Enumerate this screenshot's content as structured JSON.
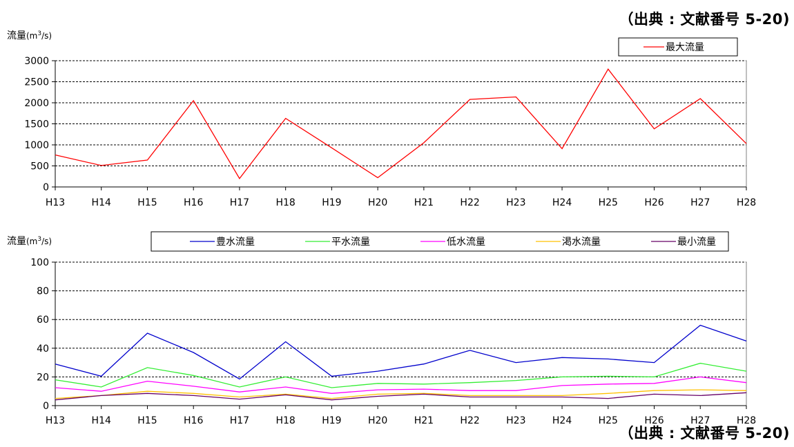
{
  "source_top": "（出典 : 文献番号 5-20)",
  "source_bottom": "（出典 : 文献番号 5-20)",
  "chart_data": [
    {
      "type": "line",
      "ylabel": "流量(m3/s)",
      "ylabel_main": "流量",
      "ylabel_unit": "(m",
      "ylabel_sup": "3",
      "ylabel_tail": "/s)",
      "categories": [
        "H13",
        "H14",
        "H15",
        "H16",
        "H17",
        "H18",
        "H19",
        "H20",
        "H21",
        "H22",
        "H23",
        "H24",
        "H25",
        "H26",
        "H27",
        "H28"
      ],
      "ylim": [
        0,
        3000
      ],
      "yticks": [
        0,
        500,
        1000,
        1500,
        2000,
        2500,
        3000
      ],
      "grid": true,
      "legend_position": "top-right",
      "series": [
        {
          "name": "最大流量",
          "color": "#ff0000",
          "values": [
            760,
            510,
            640,
            2050,
            200,
            1630,
            930,
            220,
            1050,
            2080,
            2140,
            910,
            2800,
            1380,
            2100,
            1030
          ]
        }
      ]
    },
    {
      "type": "line",
      "ylabel": "流量(m3/s)",
      "ylabel_main": "流量",
      "ylabel_unit": "(m",
      "ylabel_sup": "3",
      "ylabel_tail": "/s)",
      "categories": [
        "H13",
        "H14",
        "H15",
        "H16",
        "H17",
        "H18",
        "H19",
        "H20",
        "H21",
        "H22",
        "H23",
        "H24",
        "H25",
        "H26",
        "H27",
        "H28"
      ],
      "ylim": [
        0,
        100
      ],
      "yticks": [
        0,
        20,
        40,
        60,
        80,
        100
      ],
      "grid": true,
      "legend_position": "top",
      "series": [
        {
          "name": "豊水流量",
          "color": "#0000cc",
          "values": [
            29,
            20.5,
            50.5,
            37,
            18.5,
            44.5,
            20.5,
            24,
            29,
            38.5,
            30,
            33.5,
            32.5,
            30,
            56,
            45
          ]
        },
        {
          "name": "平水流量",
          "color": "#33ee33",
          "values": [
            18,
            13,
            26.5,
            21,
            13,
            20,
            12.5,
            15.5,
            15,
            16,
            17.5,
            20,
            20.5,
            20,
            29.5,
            24
          ]
        },
        {
          "name": "低水流量",
          "color": "#ff00ff",
          "values": [
            12.5,
            10,
            17,
            13.5,
            9.5,
            13,
            8.5,
            11,
            11.5,
            10.5,
            10.5,
            14,
            15,
            15.5,
            20,
            16
          ]
        },
        {
          "name": "渇水流量",
          "color": "#ffc000",
          "values": [
            5,
            7,
            10,
            8.5,
            6,
            8,
            5,
            8,
            8.5,
            7,
            7,
            7,
            8.5,
            10.5,
            11,
            10.5
          ]
        },
        {
          "name": "最小流量",
          "color": "#660066",
          "values": [
            4,
            7,
            8.5,
            7,
            4.5,
            7.5,
            4,
            6.5,
            8,
            6,
            6,
            6,
            5,
            8,
            7,
            9
          ]
        }
      ]
    }
  ]
}
